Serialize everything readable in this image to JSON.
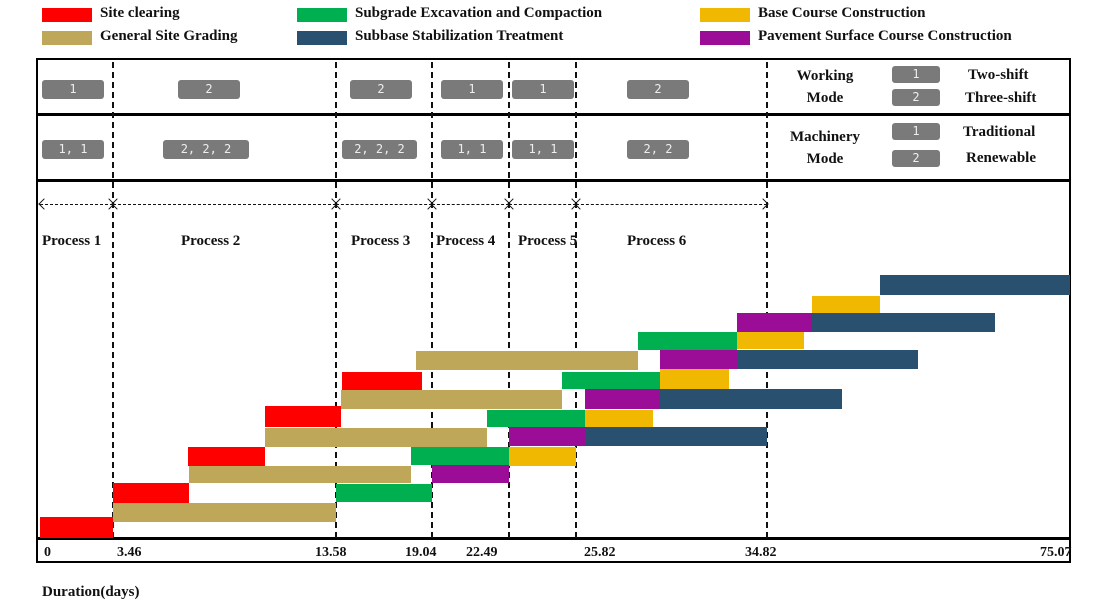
{
  "legend": [
    {
      "label": "Site clearing",
      "color": "#ff0000"
    },
    {
      "label": "General Site Grading",
      "color": "#bfa75a"
    },
    {
      "label": "Subgrade Excavation and Compaction",
      "color": "#00b050"
    },
    {
      "label": "Subbase Stabilization Treatment",
      "color": "#2a5070"
    },
    {
      "label": "Base Course Construction",
      "color": "#f0b800"
    },
    {
      "label": "Pavement Surface Course Construction",
      "color": "#9b0d96"
    }
  ],
  "working_mode": {
    "values": [
      "1",
      "2",
      "2",
      "1",
      "1",
      "2"
    ],
    "title": "Working Mode",
    "key": [
      {
        "code": "1",
        "label": "Two-shift"
      },
      {
        "code": "2",
        "label": "Three-shift"
      }
    ]
  },
  "machinery_mode": {
    "values": [
      "1, 1",
      "2, 2, 2",
      "2, 2, 2",
      "1, 1",
      "1, 1",
      "2, 2"
    ],
    "title": "Machinery Mode",
    "key": [
      {
        "code": "1",
        "label": "Traditional"
      },
      {
        "code": "2",
        "label": "Renewable"
      }
    ]
  },
  "processes": [
    "Process 1",
    "Process 2",
    "Process 3",
    "Process 4",
    "Process 5",
    "Process 6"
  ],
  "ticks": [
    "0",
    "3.46",
    "13.58",
    "19.04",
    "22.49",
    "25.82",
    "34.82",
    "75.07"
  ],
  "xlabel": "Duration(days)"
}
